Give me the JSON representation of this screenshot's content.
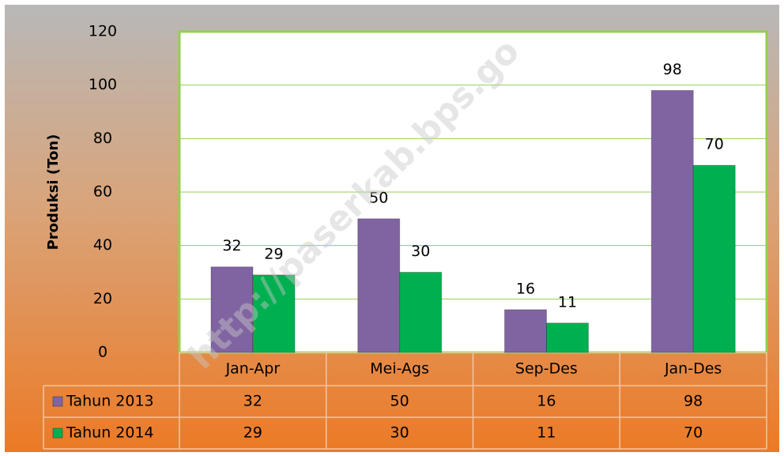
{
  "chart_data": {
    "type": "bar",
    "ylabel": "Produksi (Ton)",
    "watermark": "http://paserkab.bps.go",
    "categories": [
      "Jan-Apr",
      "Mei-Ags",
      "Sep-Des",
      "Jan-Des"
    ],
    "series": [
      {
        "name": "Tahun 2013",
        "color": "#8064a2",
        "values": [
          32,
          50,
          16,
          98
        ]
      },
      {
        "name": "Tahun 2014",
        "color": "#00b050",
        "values": [
          29,
          30,
          11,
          70
        ]
      }
    ],
    "ylim": [
      0,
      120
    ],
    "yticks": [
      0,
      20,
      40,
      60,
      80,
      100,
      120
    ],
    "grid": true
  }
}
